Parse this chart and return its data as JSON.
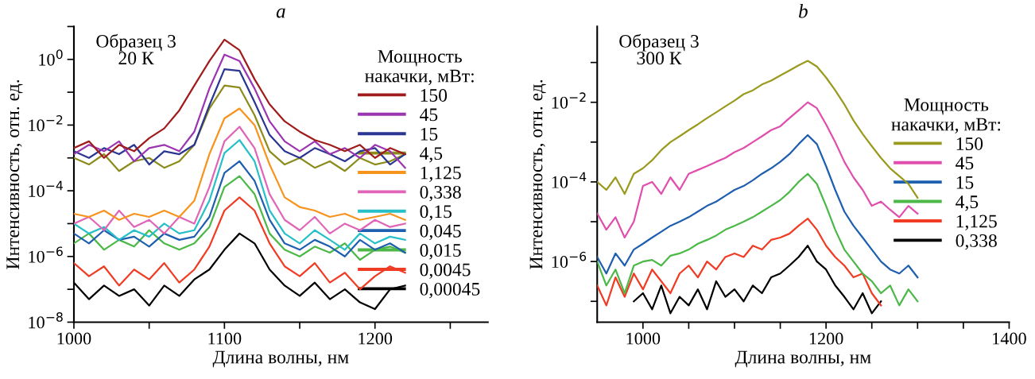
{
  "chart_data": [
    {
      "type": "line",
      "title": "a",
      "xlabel": "Длина волны, нм",
      "ylabel": "Интенсивность, отн. ед.",
      "legend_title": "Мощность\nнакачки, мВт:",
      "annotations": [
        "Образец 3\n20 К"
      ],
      "log": true,
      "legend": "right",
      "grid": false,
      "tick_labels": true,
      "xlim": [
        1000,
        1275
      ],
      "xticks": [
        1000,
        {
          "value": 1050,
          "label": null
        },
        1100,
        {
          "value": 1150,
          "label": null
        },
        1200,
        {
          "value": 1250,
          "label": null
        }
      ],
      "ylim": [
        1e-08,
        10
      ],
      "yticks": [
        {
          "value": 1e-08,
          "label": "10$^{−8}$"
        },
        {
          "value": 1e-07,
          "label": null
        },
        {
          "value": 1e-06,
          "label": "10$^{−6}$"
        },
        {
          "value": 1e-05,
          "label": null
        },
        {
          "value": 0.0001,
          "label": "10$^{−4}$"
        },
        {
          "value": 0.001,
          "label": null
        },
        {
          "value": 0.01,
          "label": "10$^{−2}$"
        },
        {
          "value": 0.1,
          "label": null
        },
        {
          "value": 1,
          "label": "10$^{0}$"
        },
        {
          "value": 10,
          "label": null
        }
      ],
      "x": [
        1000,
        1010,
        1020,
        1030,
        1040,
        1050,
        1060,
        1070,
        1080,
        1090,
        1100,
        1110,
        1120,
        1130,
        1140,
        1150,
        1160,
        1170,
        1180,
        1190,
        1200,
        1210,
        1220
      ],
      "series": [
        {
          "name": "150",
          "color": "#a01c1c",
          "values": [
            0.002,
            0.0032,
            0.001,
            0.0025,
            0.0016,
            0.004,
            0.0079,
            0.028,
            0.16,
            0.89,
            4.0,
            1.9,
            0.25,
            0.043,
            0.013,
            0.0063,
            0.0035,
            0.0025,
            0.0016,
            0.0025,
            0.001,
            0.002,
            0.0013
          ]
        },
        {
          "name": "45",
          "color": "#9b36b0",
          "values": [
            0.0013,
            0.0025,
            0.0016,
            0.0032,
            0.00079,
            0.002,
            0.0025,
            0.0016,
            0.0063,
            0.13,
            1.4,
            0.89,
            0.13,
            0.013,
            0.0032,
            0.0016,
            0.0032,
            0.0013,
            0.002,
            0.001,
            0.0025,
            0.0016,
            0.0005
          ]
        },
        {
          "name": "15",
          "color": "#2b3592",
          "values": [
            0.0016,
            0.001,
            0.002,
            0.0013,
            0.0025,
            0.00063,
            0.0016,
            0.0013,
            0.0025,
            0.04,
            0.5,
            0.45,
            0.05,
            0.005,
            0.0016,
            0.001,
            0.002,
            0.0013,
            0.00079,
            0.0016,
            0.002,
            0.00063,
            0.0013
          ]
        },
        {
          "name": "4,5",
          "color": "#8c8c1c",
          "values": [
            0.001,
            0.00063,
            0.0013,
            0.0004,
            0.00079,
            0.001,
            0.0005,
            0.00079,
            0.0025,
            0.032,
            0.16,
            0.14,
            0.02,
            0.0016,
            0.00063,
            0.001,
            0.0005,
            0.00079,
            0.0004,
            0.001,
            0.00063,
            0.00079,
            0.0013
          ]
        },
        {
          "name": "1,125",
          "color": "#f7941e",
          "values": [
            2e-05,
            1.6e-05,
            2.5e-05,
            1.3e-05,
            2e-05,
            1.6e-05,
            2.5e-05,
            1.6e-05,
            5e-05,
            0.0013,
            0.016,
            0.032,
            0.01,
            0.00063,
            6.3e-05,
            3.2e-05,
            2.5e-05,
            1.6e-05,
            2e-05,
            1.3e-05,
            1.6e-05,
            2e-05,
            1.3e-05
          ]
        },
        {
          "name": "0,338",
          "color": "#e065b8",
          "values": [
            1e-05,
            1.6e-05,
            6.3e-06,
            2.5e-05,
            7.9e-06,
            1.3e-05,
            5e-06,
            1.6e-05,
            1e-05,
            0.00013,
            0.0032,
            0.0089,
            0.002,
            7.9e-05,
            1.3e-05,
            6.3e-06,
            1.6e-05,
            5e-06,
            1e-05,
            6.3e-06,
            1.3e-05,
            7.9e-06,
            1e-05
          ]
        },
        {
          "name": "0,15",
          "color": "#27c0c8",
          "values": [
            1e-05,
            5e-06,
            7.9e-06,
            3.2e-06,
            6.3e-06,
            4e-06,
            1e-05,
            5e-06,
            6.3e-06,
            5e-05,
            0.0014,
            0.0035,
            0.00079,
            2.5e-05,
            5e-06,
            2.5e-06,
            6.3e-06,
            3.2e-06,
            1.6e-06,
            5e-06,
            2.5e-06,
            4e-06,
            3.2e-06
          ]
        },
        {
          "name": "0,045",
          "color": "#1f5fb0",
          "values": [
            5e-06,
            2.5e-06,
            6.3e-06,
            3.2e-06,
            4e-06,
            2e-06,
            5e-06,
            3.2e-06,
            4e-06,
            1.6e-05,
            0.00035,
            0.00079,
            0.0002,
            1.3e-05,
            2.5e-06,
            1.6e-06,
            3.2e-06,
            2e-06,
            1e-06,
            3.2e-06,
            1.6e-06,
            2.5e-06,
            1.3e-06
          ]
        },
        {
          "name": "0,015",
          "color": "#4cb848",
          "values": [
            2.5e-06,
            5e-06,
            1.6e-06,
            3.2e-06,
            2e-06,
            6.3e-06,
            2.5e-06,
            1.6e-06,
            2.5e-06,
            7.9e-06,
            0.00013,
            0.00028,
            7.9e-05,
            5e-06,
            1.6e-06,
            1e-06,
            2e-06,
            1.3e-06,
            2.5e-06,
            7.9e-07,
            1.6e-06,
            2e-06,
            1.3e-06
          ]
        },
        {
          "name": "0,0045",
          "color": "#f03c24",
          "values": [
            6.3e-07,
            2.5e-07,
            5e-07,
            1.3e-07,
            4e-07,
            2e-07,
            6.3e-07,
            1.6e-07,
            4e-07,
            2e-06,
            2.5e-05,
            6.3e-05,
            2.5e-05,
            2.5e-06,
            5e-07,
            2.5e-07,
            6.3e-07,
            1.6e-07,
            3.2e-07,
            1e-07,
            2.5e-07,
            5e-07,
            3.2e-07
          ]
        },
        {
          "name": "0,00045",
          "color": "#000000",
          "values": [
            1.6e-07,
            5e-08,
            1.3e-07,
            6.3e-08,
            1e-07,
            3.2e-08,
            1.3e-07,
            6.3e-08,
            2e-07,
            4e-07,
            1.6e-06,
            5e-06,
            2.5e-06,
            4e-07,
            1.3e-07,
            6.3e-08,
            1.6e-07,
            5e-08,
            1e-07,
            4e-08,
            2.5e-08,
            1e-07,
            1.3e-07
          ]
        }
      ]
    },
    {
      "type": "line",
      "title": "b",
      "xlabel": "Длина волны, нм",
      "ylabel": "Интенсивность, отн. ед.",
      "legend_title": "Мощность\nнакачки, мВт:",
      "annotations": [
        "Образец 3\n300 К"
      ],
      "log": true,
      "legend": "right",
      "grid": false,
      "xlim": [
        950,
        1400
      ],
      "xticks": [
        1000,
        {
          "value": 1050,
          "label": null
        },
        {
          "value": 1100,
          "label": null
        },
        {
          "value": 1150,
          "label": null
        },
        1200,
        {
          "value": 1250,
          "label": null
        },
        {
          "value": 1300,
          "label": null
        },
        {
          "value": 1350,
          "label": null
        },
        1400
      ],
      "ylim": [
        3e-08,
        0.8
      ],
      "yticks": [
        {
          "value": 1e-07,
          "label": null
        },
        {
          "value": 1e-06,
          "label": "10$^{−6}$"
        },
        {
          "value": 1e-05,
          "label": null
        },
        {
          "value": 0.0001,
          "label": "10$^{−4}$"
        },
        {
          "value": 0.001,
          "label": null
        },
        {
          "value": 0.01,
          "label": "10$^{−2}$"
        },
        {
          "value": 0.1,
          "label": null
        }
      ],
      "x": [
        950,
        960,
        970,
        980,
        990,
        1000,
        1010,
        1020,
        1030,
        1040,
        1050,
        1060,
        1070,
        1080,
        1090,
        1100,
        1110,
        1120,
        1130,
        1140,
        1150,
        1160,
        1170,
        1180,
        1190,
        1200,
        1210,
        1220,
        1230,
        1240,
        1250,
        1260,
        1270,
        1280,
        1290,
        1300
      ],
      "series": [
        {
          "name": "150",
          "color": "#9a9a1e",
          "values": [
            0.0001,
            6.3e-05,
            0.00013,
            5e-05,
            0.00016,
            0.00022,
            0.00035,
            0.00063,
            0.001,
            0.0014,
            0.002,
            0.0028,
            0.004,
            0.0056,
            0.0079,
            0.011,
            0.016,
            0.02,
            0.028,
            0.035,
            0.047,
            0.063,
            0.085,
            0.11,
            0.079,
            0.042,
            0.02,
            0.0089,
            0.0035,
            0.0016,
            0.00079,
            0.0004,
            0.00022,
            0.00014,
            8.9e-05,
            4e-05
          ]
        },
        {
          "name": "45",
          "color": "#e04fad",
          "values": [
            1.6e-05,
            6.3e-06,
            1.3e-05,
            4e-06,
            1e-05,
            7.9e-05,
            0.0001,
            5e-05,
            0.00013,
            6.3e-05,
            0.00016,
            0.0002,
            0.00025,
            0.00032,
            0.0004,
            0.00056,
            0.00071,
            0.001,
            0.0014,
            0.002,
            0.0025,
            0.004,
            0.0063,
            0.01,
            0.0071,
            0.0028,
            0.001,
            0.00032,
            0.00013,
            6.3e-05,
            2.5e-05,
            3.2e-05,
            2e-05,
            1.3e-05,
            2.5e-05,
            1.6e-05
          ]
        },
        {
          "name": "15",
          "color": "#1f5fb0",
          "values": [
            1.3e-06,
            5e-07,
            1.6e-06,
            7.9e-07,
            2e-06,
            2.8e-06,
            4e-06,
            5.6e-06,
            7.9e-06,
            1e-05,
            1.3e-05,
            1.8e-05,
            2.5e-05,
            3.2e-05,
            4.5e-05,
            6.3e-05,
            7.9e-05,
            0.00011,
            0.00016,
            0.00022,
            0.00032,
            0.0005,
            0.00089,
            0.0015,
            0.00089,
            0.00025,
            6.3e-05,
            1.8e-05,
            7.9e-06,
            4e-06,
            2e-06,
            1e-06,
            6.3e-07,
            5e-07,
            7.9e-07,
            4e-07
          ]
        },
        {
          "name": "4,5",
          "color": "#4cb848",
          "values": [
            1e-06,
            2.5e-07,
            6.3e-07,
            1.6e-07,
            7.9e-07,
            1e-06,
            1.1e-06,
            7.9e-07,
            1.4e-06,
            1.6e-06,
            2e-06,
            2.8e-06,
            3.5e-06,
            4.5e-06,
            6.3e-06,
            7.9e-06,
            1e-05,
            1.3e-05,
            1.8e-05,
            2.5e-05,
            3.5e-05,
            5.6e-05,
            0.0001,
            0.00016,
            8.9e-05,
            2.5e-05,
            6.3e-06,
            2e-06,
            1e-06,
            5e-07,
            3.2e-07,
            1.6e-07,
            2.5e-07,
            7.9e-08,
            2e-07,
            1e-07
          ]
        },
        {
          "name": "1,125",
          "color": "#f03c24",
          "values": [
            2.5e-07,
            7.9e-08,
            4e-07,
            1.3e-07,
            5e-07,
            2e-07,
            6.3e-07,
            3.2e-07,
            1.6e-07,
            5e-07,
            7.9e-07,
            4e-07,
            1e-06,
            6.3e-07,
            1.3e-06,
            1.6e-06,
            1.3e-06,
            2.5e-06,
            2e-06,
            3.5e-06,
            4e-06,
            5e-06,
            7.9e-06,
            1.2e-05,
            6.3e-06,
            2.5e-06,
            1.3e-06,
            7.9e-07,
            4e-07,
            5e-07,
            1.6e-07,
            7.9e-08,
            null,
            null,
            null,
            null
          ]
        },
        {
          "name": "0,338",
          "color": "#000000",
          "values": [
            null,
            null,
            null,
            null,
            1e-07,
            1.6e-07,
            6.3e-08,
            2.5e-07,
            5e-08,
            1.3e-07,
            7.9e-08,
            2e-07,
            6.3e-08,
            3.2e-07,
            1.3e-07,
            2e-07,
            1e-07,
            2.5e-07,
            1.6e-07,
            4e-07,
            5e-07,
            7.9e-07,
            1.3e-06,
            2.5e-06,
            1e-06,
            6.3e-07,
            2.5e-07,
            1.3e-07,
            6.3e-08,
            1.6e-07,
            5e-08,
            1e-07,
            null,
            null,
            null,
            null
          ]
        }
      ]
    }
  ]
}
